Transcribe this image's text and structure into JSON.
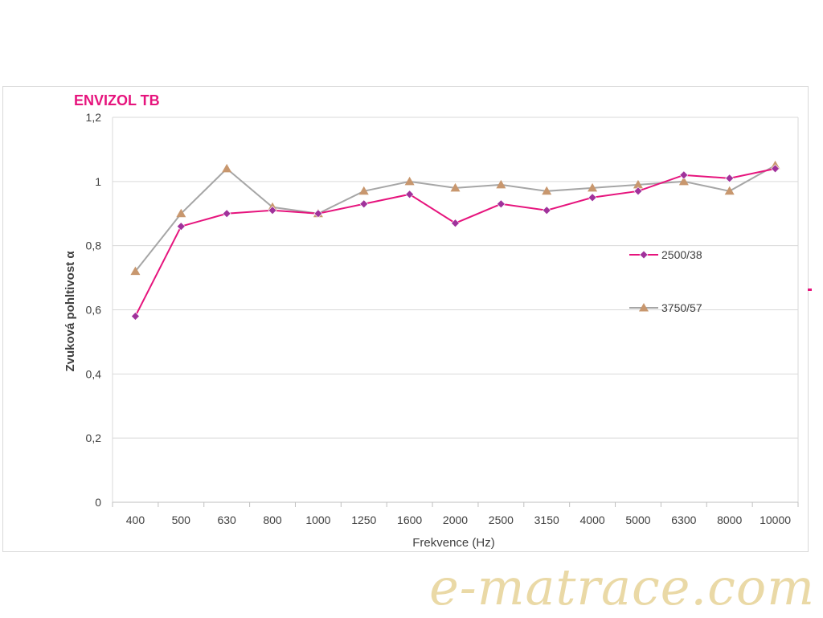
{
  "chart_data": {
    "type": "line",
    "title": "ENVIZOL TB",
    "xlabel": "Frekvence (Hz)",
    "ylabel": "Zvuková pohltivost α",
    "categories": [
      "400",
      "500",
      "630",
      "800",
      "1000",
      "1250",
      "1600",
      "2000",
      "2500",
      "3150",
      "4000",
      "5000",
      "6300",
      "8000",
      "10000"
    ],
    "ylim": [
      0,
      1.2
    ],
    "yticks": [
      "0",
      "0,2",
      "0,4",
      "0,6",
      "0,8",
      "1",
      "1,2"
    ],
    "yticks_values": [
      0,
      0.2,
      0.4,
      0.6,
      0.8,
      1.0,
      1.2
    ],
    "grid": true,
    "legend_position": "right",
    "series": [
      {
        "name": "2500/38",
        "color": "#e6147d",
        "marker": "diamond",
        "marker_color": "#a0329b",
        "values": [
          0.58,
          0.86,
          0.9,
          0.91,
          0.9,
          0.93,
          0.96,
          0.87,
          0.93,
          0.91,
          0.95,
          0.97,
          1.02,
          1.01,
          1.04
        ]
      },
      {
        "name": "3750/57",
        "color": "#a6a6a6",
        "marker": "triangle",
        "marker_color": "#c8976e",
        "values": [
          0.72,
          0.9,
          1.04,
          0.92,
          0.9,
          0.97,
          1.0,
          0.98,
          0.99,
          0.97,
          0.98,
          0.99,
          1.0,
          0.97,
          1.05
        ]
      }
    ]
  },
  "watermark": "e-matrace.com"
}
